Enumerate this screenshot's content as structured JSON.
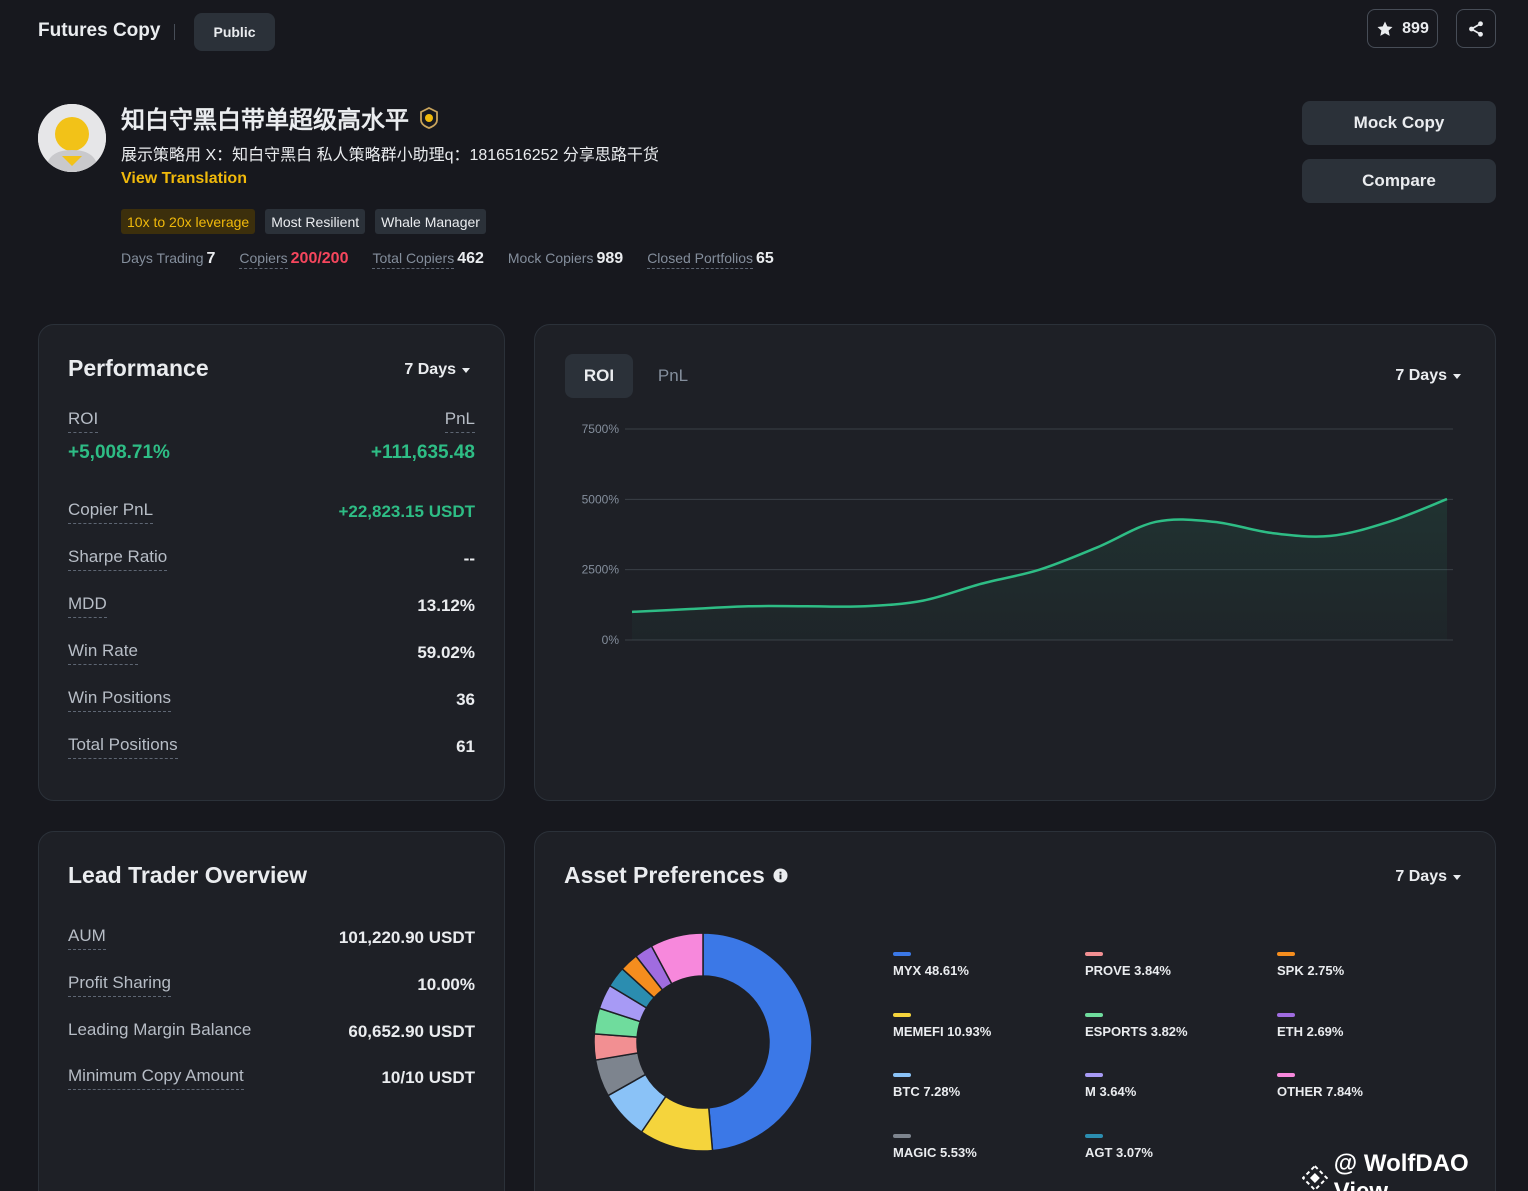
{
  "header": {
    "title": "Futures Copy",
    "visibility_badge": "Public",
    "favorites_count": "899"
  },
  "profile": {
    "name": "知白守黑白带单超级高水平",
    "bio": "展示策略用 X：知白守黑白 私人策略群小助理q：1816516252 分享思路干货",
    "view_translation": "View Translation",
    "tags": [
      "10x to 20x leverage",
      "Most Resilient",
      "Whale Manager"
    ],
    "stats": {
      "days_trading_label": "Days Trading",
      "days_trading": "7",
      "copiers_label": "Copiers",
      "copiers": "200/200",
      "total_copiers_label": "Total Copiers",
      "total_copiers": "462",
      "mock_copiers_label": "Mock Copiers",
      "mock_copiers": "989",
      "closed_portfolios_label": "Closed Portfolios",
      "closed_portfolios": "65"
    }
  },
  "actions": {
    "mock_copy": "Mock Copy",
    "compare": "Compare"
  },
  "performance": {
    "title": "Performance",
    "period": "7 Days",
    "roi_label": "ROI",
    "roi_value": "+5,008.71%",
    "pnl_label": "PnL",
    "pnl_value": "+111,635.48",
    "rows": [
      {
        "label": "Copier PnL",
        "value": "+22,823.15 USDT"
      },
      {
        "label": "Sharpe Ratio",
        "value": "--"
      },
      {
        "label": "MDD",
        "value": "13.12%"
      },
      {
        "label": "Win Rate",
        "value": "59.02%"
      },
      {
        "label": "Win Positions",
        "value": "36"
      },
      {
        "label": "Total Positions",
        "value": "61"
      }
    ]
  },
  "roi_chart": {
    "tabs": [
      "ROI",
      "PnL"
    ],
    "active_tab": "ROI",
    "period": "7 Days",
    "line_color": "#2ebd85"
  },
  "chart_data": {
    "type": "line",
    "title": "",
    "xlabel": "",
    "ylabel": "",
    "ylim": [
      0,
      7500
    ],
    "y_ticks": [
      "7500%",
      "5000%",
      "2500%",
      "0%"
    ],
    "y_tick_values": [
      7500,
      5000,
      2500,
      0
    ],
    "x": [
      0,
      1,
      2,
      3,
      4,
      5,
      6,
      7,
      8,
      9,
      10,
      11,
      12,
      13,
      14
    ],
    "series": [
      {
        "values": [
          1000,
          1100,
          1200,
          1200,
          1200,
          1400,
          2000,
          2500,
          3300,
          4200,
          4200,
          3800,
          3700,
          4200,
          5008.71
        ]
      }
    ]
  },
  "lead_trader": {
    "title": "Lead Trader Overview",
    "rows": [
      {
        "label": "AUM",
        "value": "101,220.90 USDT"
      },
      {
        "label": "Profit Sharing",
        "value": "10.00%"
      },
      {
        "label": "Leading Margin Balance",
        "value": "60,652.90 USDT"
      },
      {
        "label": "Minimum Copy Amount",
        "value": "10/10 USDT"
      }
    ]
  },
  "assets": {
    "title": "Asset Preferences",
    "period": "7 Days",
    "items": [
      {
        "name": "MYX 48.61%",
        "percent": 48.61,
        "color": "#3b78e7"
      },
      {
        "name": "MEMEFI 10.93%",
        "percent": 10.93,
        "color": "#f5d43c"
      },
      {
        "name": "BTC 7.28%",
        "percent": 7.28,
        "color": "#8ac2f7"
      },
      {
        "name": "MAGIC 5.53%",
        "percent": 5.53,
        "color": "#7d848e"
      },
      {
        "name": "PROVE 3.84%",
        "percent": 3.84,
        "color": "#f28f92"
      },
      {
        "name": "ESPORTS 3.82%",
        "percent": 3.82,
        "color": "#6fdc9d"
      },
      {
        "name": "M 3.64%",
        "percent": 3.64,
        "color": "#a79af5"
      },
      {
        "name": "AGT 3.07%",
        "percent": 3.07,
        "color": "#2b8db0"
      },
      {
        "name": "SPK 2.75%",
        "percent": 2.75,
        "color": "#f58d1e"
      },
      {
        "name": "ETH 2.69%",
        "percent": 2.69,
        "color": "#a06ce0"
      },
      {
        "name": "OTHER 7.84%",
        "percent": 7.84,
        "color": "#f788dc"
      }
    ]
  },
  "watermark": "@ WolfDAO View"
}
